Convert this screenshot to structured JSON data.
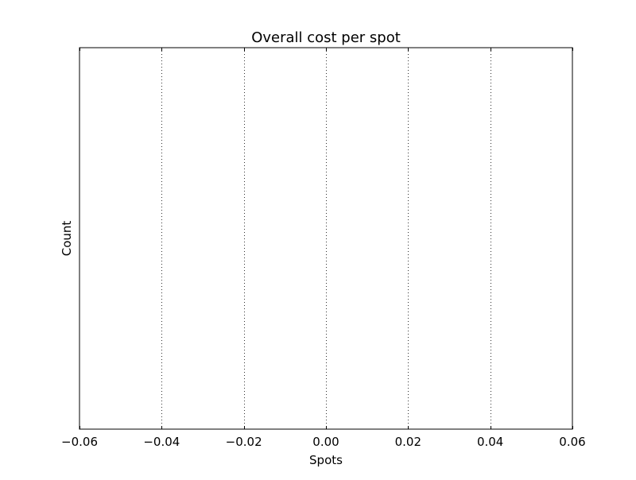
{
  "chart_data": {
    "type": "bar",
    "title": "Overall cost per spot",
    "xlabel": "Spots",
    "ylabel": "Count",
    "xlim": [
      -0.06,
      0.06
    ],
    "x_ticks": [
      -0.06,
      -0.04,
      -0.02,
      0.0,
      0.02,
      0.04,
      0.06
    ],
    "x_tick_labels": [
      "−0.06",
      "−0.04",
      "−0.02",
      "0.00",
      "0.02",
      "0.04",
      "0.06"
    ],
    "y_ticks": [],
    "y_tick_labels": [],
    "series": [],
    "grid": "x-dotted",
    "legend": "none"
  },
  "colors": {
    "background": "#ffffff",
    "axes": "#000000",
    "grid": "#000000"
  }
}
